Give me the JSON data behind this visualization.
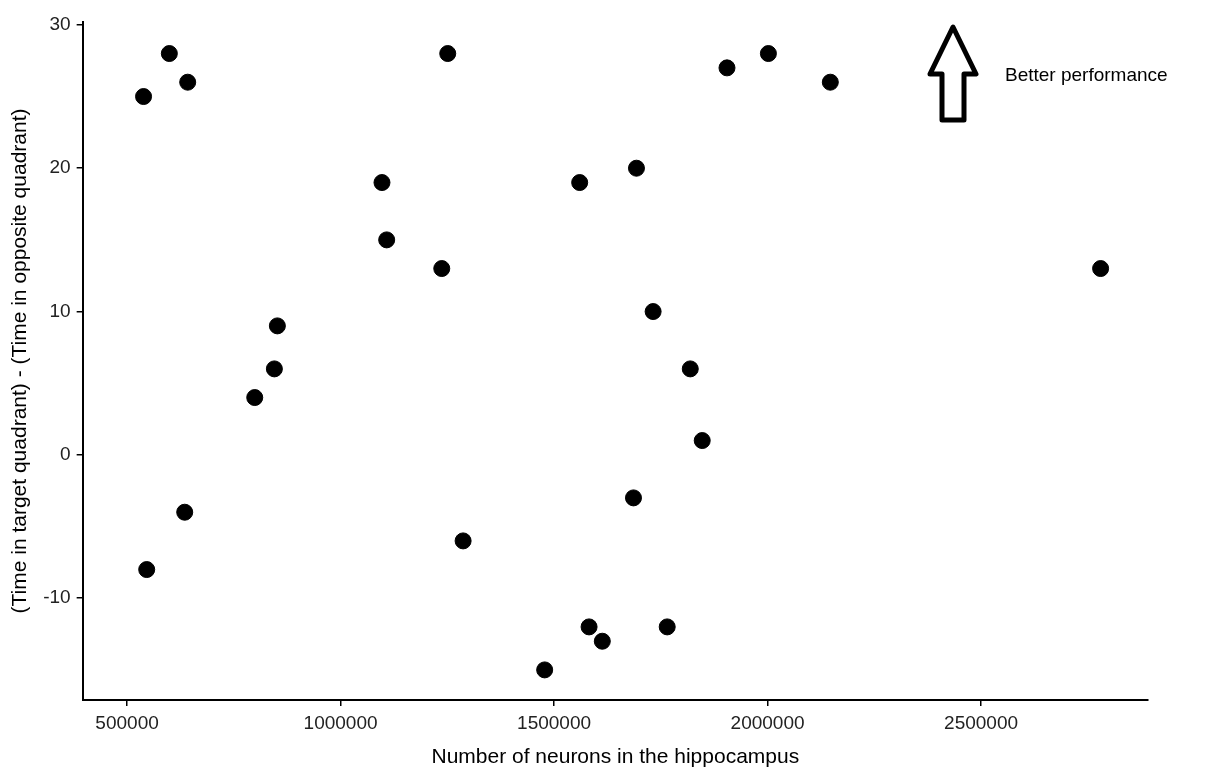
{
  "chart_data": {
    "type": "scatter",
    "xlabel": "Number of neurons in the hippocampus",
    "ylabel": "(Time in target quadrant) - (Time in opposite quadrant)",
    "x": [
      538600,
      599000,
      642000,
      1251000,
      1097000,
      1108000,
      1237000,
      852000,
      845000,
      799000,
      635000,
      546000,
      1287000,
      1478000,
      1905000,
      2002000,
      2147000,
      1560000,
      1693000,
      1732000,
      1819000,
      1847000,
      1686000,
      1582000,
      1613000,
      1765000,
      2780000
    ],
    "values": [
      25,
      28,
      26,
      28,
      19,
      15,
      13,
      9,
      6,
      4,
      -4,
      -8,
      -6,
      -15,
      27,
      28,
      26,
      19,
      20,
      10,
      6,
      1,
      -3,
      -12,
      -13,
      -12,
      13
    ],
    "color": "#000000",
    "marker": "circle",
    "xlim": [
      396000,
      2891000
    ],
    "xticks": [
      500000,
      1000000,
      1500000,
      2000000,
      2500000
    ],
    "ylim": [
      -17.1,
      30.2
    ],
    "yticks": [
      -10,
      0,
      10,
      20,
      30
    ],
    "grid": false,
    "legend": false,
    "annotations": [
      "Better performance"
    ]
  }
}
